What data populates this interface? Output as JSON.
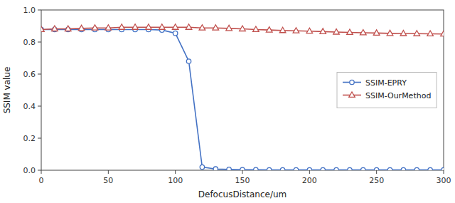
{
  "chart_data": {
    "type": "line",
    "xlabel": "DefocusDistance/um",
    "ylabel": "SSIM value",
    "x": [
      0,
      10,
      20,
      30,
      40,
      50,
      60,
      70,
      80,
      90,
      100,
      110,
      120,
      130,
      140,
      150,
      160,
      170,
      180,
      190,
      200,
      210,
      220,
      230,
      240,
      250,
      260,
      270,
      280,
      290,
      300
    ],
    "series": [
      {
        "name": "SSIM-EPRY",
        "color": "#4472C4",
        "marker": "circle",
        "values": [
          0.878,
          0.878,
          0.878,
          0.878,
          0.878,
          0.878,
          0.878,
          0.878,
          0.878,
          0.875,
          0.855,
          0.68,
          0.02,
          0.008,
          0.005,
          0.003,
          0.003,
          0.002,
          0.002,
          0.002,
          0.002,
          0.002,
          0.002,
          0.002,
          0.002,
          0.002,
          0.002,
          0.002,
          0.002,
          0.002,
          0.002
        ]
      },
      {
        "name": "SSIM-OurMethod",
        "color": "#C0504D",
        "marker": "triangle",
        "values": [
          0.878,
          0.882,
          0.882,
          0.885,
          0.888,
          0.888,
          0.892,
          0.892,
          0.892,
          0.892,
          0.892,
          0.892,
          0.888,
          0.888,
          0.885,
          0.882,
          0.878,
          0.875,
          0.872,
          0.87,
          0.868,
          0.865,
          0.862,
          0.86,
          0.858,
          0.856,
          0.854,
          0.853,
          0.852,
          0.851,
          0.85
        ]
      }
    ],
    "xlim": [
      0,
      300
    ],
    "ylim": [
      0,
      1.0
    ],
    "xticks": [
      0,
      50,
      100,
      150,
      200,
      250,
      300
    ],
    "yticks": [
      {
        "value": 0,
        "label": "0.0"
      },
      0.2,
      0.4,
      0.6,
      0.8,
      {
        "value": 1.0,
        "label": "1.0"
      }
    ],
    "grid": false,
    "legend": "right"
  }
}
